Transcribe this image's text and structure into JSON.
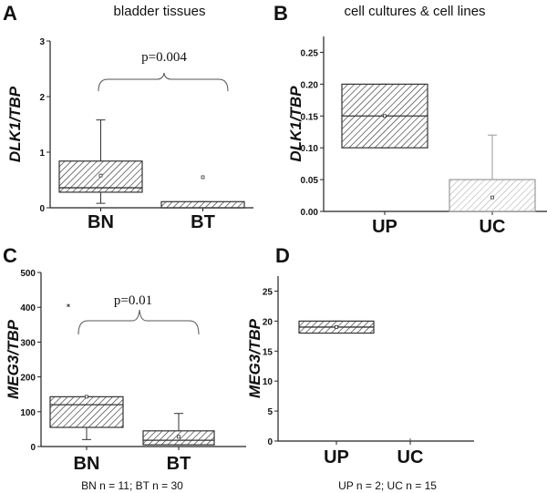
{
  "chart_data": [
    {
      "type": "box",
      "panel": "A",
      "title": "bladder tissues",
      "ylabel": "DLK1/TBP",
      "ylim": [
        0,
        3
      ],
      "yticks": [
        "0",
        "1",
        "2",
        "3"
      ],
      "ytick_values": [
        0,
        1,
        2,
        3
      ],
      "categories": [
        "BN",
        "BT"
      ],
      "boxes": [
        {
          "q1": 0.28,
          "median": 0.36,
          "q3": 0.84,
          "whisker_low": 0.08,
          "whisker_high": 1.58,
          "mean": 0.58,
          "shade": "dark"
        },
        {
          "q1": 0.0,
          "median": 0.0,
          "q3": 0.11,
          "whisker_low": 0.0,
          "whisker_high": 0.11,
          "mean": 0.55,
          "shade": "dark"
        }
      ],
      "annotation": "p=0.004",
      "footnote": ""
    },
    {
      "type": "box",
      "panel": "B",
      "title": "cell cultures & cell lines",
      "ylabel": "DLK1/TBP",
      "ylim": [
        0,
        0.275
      ],
      "yticks": [
        "0.00",
        "0.05",
        "0.10",
        "0.15",
        "0.20",
        "0.25"
      ],
      "ytick_values": [
        0,
        0.05,
        0.1,
        0.15,
        0.2,
        0.25
      ],
      "categories": [
        "UP",
        "UC"
      ],
      "boxes": [
        {
          "q1": 0.1,
          "median": 0.15,
          "q3": 0.2,
          "whisker_low": 0.1,
          "whisker_high": 0.2,
          "mean": 0.15,
          "shade": "dark"
        },
        {
          "q1": 0.0,
          "median": 0.0,
          "q3": 0.05,
          "whisker_low": 0.0,
          "whisker_high": 0.12,
          "mean": 0.022,
          "shade": "light"
        }
      ],
      "annotation": "",
      "footnote": ""
    },
    {
      "type": "box",
      "panel": "C",
      "title": "",
      "ylabel": "MEG3/TBP",
      "ylim": [
        0,
        500
      ],
      "yticks": [
        "0",
        "100",
        "200",
        "300",
        "400",
        "500"
      ],
      "ytick_values": [
        0,
        100,
        200,
        300,
        400,
        500
      ],
      "categories": [
        "BN",
        "BT"
      ],
      "boxes": [
        {
          "q1": 55,
          "median": 120,
          "q3": 143,
          "whisker_low": 20,
          "whisker_high": 143,
          "mean": 143,
          "outlier": 405,
          "shade": "dark"
        },
        {
          "q1": 5,
          "median": 18,
          "q3": 45,
          "whisker_low": 5,
          "whisker_high": 95,
          "mean": 28,
          "shade": "dark"
        }
      ],
      "annotation": "p=0.01",
      "footnote": "BN n = 11; BT n = 30"
    },
    {
      "type": "box",
      "panel": "D",
      "title": "",
      "ylabel": "MEG3/TBP",
      "ylim": [
        0,
        27.5
      ],
      "yticks": [
        "0",
        "5",
        "10",
        "15",
        "20",
        "25"
      ],
      "ytick_values": [
        0,
        5,
        10,
        15,
        20,
        25
      ],
      "categories": [
        "UP",
        "UC"
      ],
      "boxes": [
        {
          "q1": 18,
          "median": 19,
          "q3": 20,
          "whisker_low": 18,
          "whisker_high": 20,
          "mean": 19,
          "shade": "dark"
        },
        {
          "q1": 0,
          "median": 0,
          "q3": 0,
          "whisker_low": 0,
          "whisker_high": 0,
          "mean": 0,
          "shade": "none"
        }
      ],
      "annotation": "",
      "footnote": "UP n = 2; UC n = 15"
    }
  ],
  "colors": {
    "dark_hatch": "#333333",
    "light_hatch": "#9a9a9a",
    "axis": "#222222"
  }
}
